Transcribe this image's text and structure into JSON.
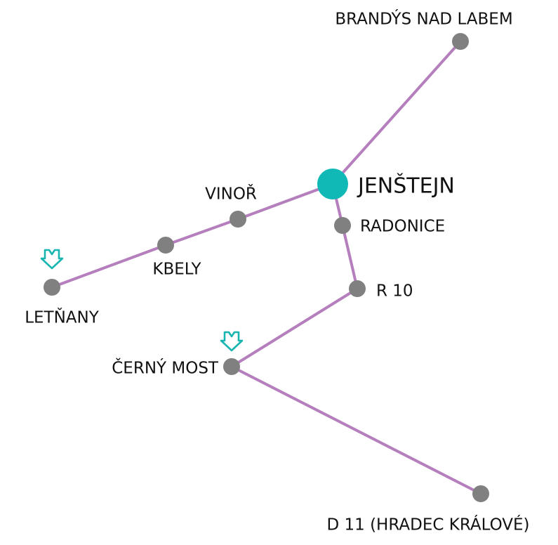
{
  "nodes": [
    {
      "label": "BRANDÝS NAD LABEM"
    },
    {
      "label": "JENŠTEJN"
    },
    {
      "label": "VINOŘ"
    },
    {
      "label": "RADONICE"
    },
    {
      "label": "KBELY"
    },
    {
      "label": "LETŇANY"
    },
    {
      "label": "R 10"
    },
    {
      "label": "ČERNÝ MOST"
    },
    {
      "label": "D 11 (HRADEC KRÁLOVÉ)"
    }
  ]
}
